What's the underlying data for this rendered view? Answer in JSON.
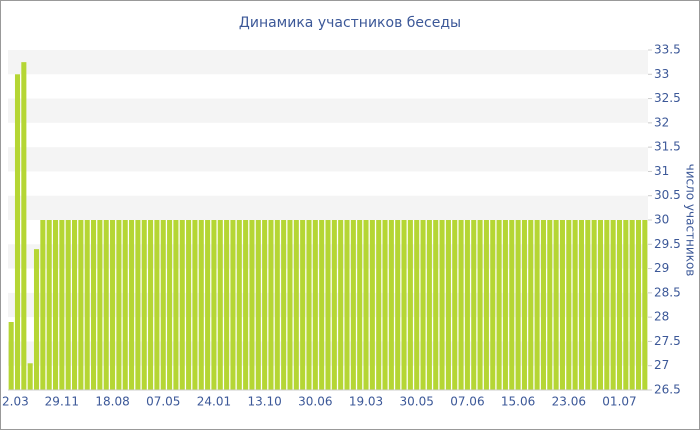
{
  "chart_data": {
    "type": "bar",
    "title": "Динамика участников беседы",
    "y_axis_label": "число участников",
    "categories": [
      "2.03",
      null,
      null,
      null,
      null,
      null,
      null,
      null,
      "29.11",
      null,
      null,
      null,
      null,
      null,
      null,
      null,
      "18.08",
      null,
      null,
      null,
      null,
      null,
      null,
      null,
      "07.05",
      null,
      null,
      null,
      null,
      null,
      null,
      null,
      "24.01",
      null,
      null,
      null,
      null,
      null,
      null,
      null,
      "13.10",
      null,
      null,
      null,
      null,
      null,
      null,
      null,
      "30.06",
      null,
      null,
      null,
      null,
      null,
      null,
      null,
      "19.03",
      null,
      null,
      null,
      null,
      null,
      null,
      null,
      "30.05",
      null,
      null,
      null,
      null,
      null,
      null,
      null,
      "07.06",
      null,
      null,
      null,
      null,
      null,
      null,
      null,
      "15.06",
      null,
      null,
      null,
      null,
      null,
      null,
      null,
      "23.06",
      null,
      null,
      null,
      null,
      null,
      null,
      null,
      "01.07",
      null,
      null,
      null,
      null
    ],
    "values": [
      27.9,
      33,
      33.25,
      27.05,
      29.4,
      30,
      30,
      30,
      30,
      30,
      30,
      30,
      30,
      30,
      30,
      30,
      30,
      30,
      30,
      30,
      30,
      30,
      30,
      30,
      30,
      30,
      30,
      30,
      30,
      30,
      30,
      30,
      30,
      30,
      30,
      30,
      30,
      30,
      30,
      30,
      30,
      30,
      30,
      30,
      30,
      30,
      30,
      30,
      30,
      30,
      30,
      30,
      30,
      30,
      30,
      30,
      30,
      30,
      30,
      30,
      30,
      30,
      30,
      30,
      30,
      30,
      30,
      30,
      30,
      30,
      30,
      30,
      30,
      30,
      30,
      30,
      30,
      30,
      30,
      30,
      30,
      30,
      30,
      30,
      30,
      30,
      30,
      30,
      30,
      30,
      30,
      30,
      30,
      30,
      30,
      30,
      30,
      30,
      30,
      30,
      30
    ],
    "color": "#b5d634",
    "ylim": [
      26.5,
      33.5
    ],
    "yticks": [
      26.5,
      27,
      27.5,
      28,
      28.5,
      29,
      29.5,
      30,
      30.5,
      31,
      31.5,
      32,
      32.5,
      33,
      33.5
    ],
    "grid": "bands"
  }
}
